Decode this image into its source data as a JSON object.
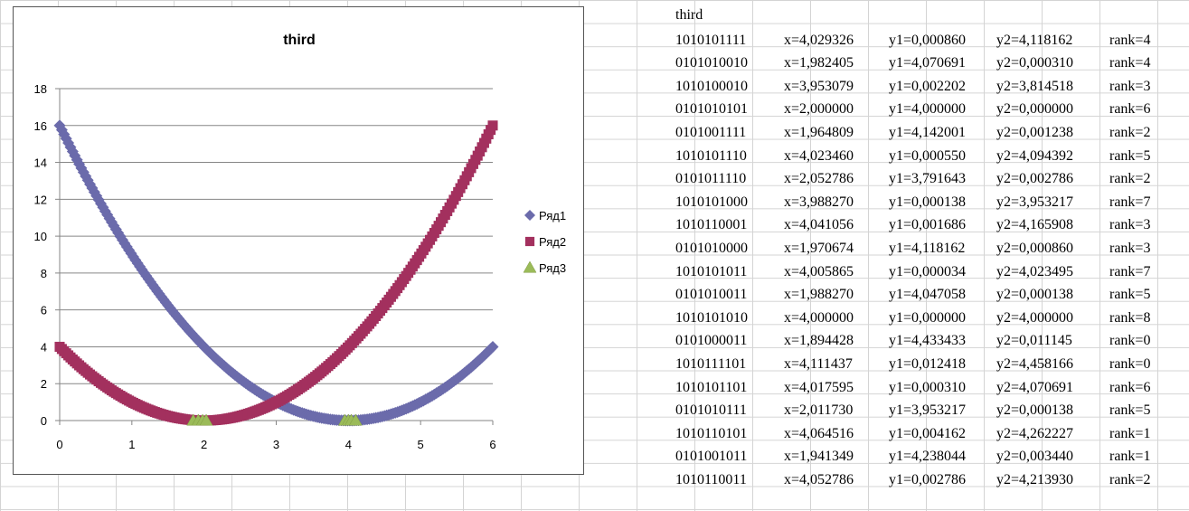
{
  "chart_data": {
    "type": "scatter",
    "title": "third",
    "xlabel": "",
    "ylabel": "",
    "xlim": [
      0,
      6
    ],
    "ylim": [
      0,
      18
    ],
    "x_ticks": [
      "0",
      "1",
      "2",
      "3",
      "4",
      "5",
      "6"
    ],
    "y_ticks": [
      "0",
      "2",
      "4",
      "6",
      "8",
      "10",
      "12",
      "14",
      "16",
      "18"
    ],
    "grid": "horizontal",
    "legend_position": "right",
    "series": [
      {
        "name": "Ряд1",
        "marker": "diamond",
        "color": "#6b6bab",
        "formula": "(x-4)^2",
        "x_range": [
          0,
          6
        ]
      },
      {
        "name": "Ряд2",
        "marker": "square",
        "color": "#a3305e",
        "formula": "(x-2)^2",
        "x_range": [
          0,
          6
        ]
      },
      {
        "name": "Ряд3",
        "marker": "triangle",
        "color": "#9bbb59",
        "points": [
          [
            1.85,
            0
          ],
          [
            1.92,
            0
          ],
          [
            1.98,
            0
          ],
          [
            2.03,
            0
          ],
          [
            3.95,
            0
          ],
          [
            4.0,
            0
          ],
          [
            4.04,
            0
          ],
          [
            4.1,
            0
          ]
        ]
      }
    ]
  },
  "sheet": {
    "title": "third",
    "rows": [
      {
        "code": "1010101111",
        "x": "x=4,029326",
        "y1": "y1=0,000860",
        "y2": "y2=4,118162",
        "rank": "rank=4"
      },
      {
        "code": "0101010010",
        "x": "x=1,982405",
        "y1": "y1=4,070691",
        "y2": "y2=0,000310",
        "rank": "rank=4"
      },
      {
        "code": "1010100010",
        "x": "x=3,953079",
        "y1": "y1=0,002202",
        "y2": "y2=3,814518",
        "rank": "rank=3"
      },
      {
        "code": "0101010101",
        "x": "x=2,000000",
        "y1": "y1=4,000000",
        "y2": "y2=0,000000",
        "rank": "rank=6"
      },
      {
        "code": "0101001111",
        "x": "x=1,964809",
        "y1": "y1=4,142001",
        "y2": "y2=0,001238",
        "rank": "rank=2"
      },
      {
        "code": "1010101110",
        "x": "x=4,023460",
        "y1": "y1=0,000550",
        "y2": "y2=4,094392",
        "rank": "rank=5"
      },
      {
        "code": "0101011110",
        "x": "x=2,052786",
        "y1": "y1=3,791643",
        "y2": "y2=0,002786",
        "rank": "rank=2"
      },
      {
        "code": "1010101000",
        "x": "x=3,988270",
        "y1": "y1=0,000138",
        "y2": "y2=3,953217",
        "rank": "rank=7"
      },
      {
        "code": "1010110001",
        "x": "x=4,041056",
        "y1": "y1=0,001686",
        "y2": "y2=4,165908",
        "rank": "rank=3"
      },
      {
        "code": "0101010000",
        "x": "x=1,970674",
        "y1": "y1=4,118162",
        "y2": "y2=0,000860",
        "rank": "rank=3"
      },
      {
        "code": "1010101011",
        "x": "x=4,005865",
        "y1": "y1=0,000034",
        "y2": "y2=4,023495",
        "rank": "rank=7"
      },
      {
        "code": "0101010011",
        "x": "x=1,988270",
        "y1": "y1=4,047058",
        "y2": "y2=0,000138",
        "rank": "rank=5"
      },
      {
        "code": "1010101010",
        "x": "x=4,000000",
        "y1": "y1=0,000000",
        "y2": "y2=4,000000",
        "rank": "rank=8"
      },
      {
        "code": "0101000011",
        "x": "x=1,894428",
        "y1": "y1=4,433433",
        "y2": "y2=0,011145",
        "rank": "rank=0"
      },
      {
        "code": "1010111101",
        "x": "x=4,111437",
        "y1": "y1=0,012418",
        "y2": "y2=4,458166",
        "rank": "rank=0"
      },
      {
        "code": "1010101101",
        "x": "x=4,017595",
        "y1": "y1=0,000310",
        "y2": "y2=4,070691",
        "rank": "rank=6"
      },
      {
        "code": "0101010111",
        "x": "x=2,011730",
        "y1": "y1=3,953217",
        "y2": "y2=0,000138",
        "rank": "rank=5"
      },
      {
        "code": "1010110101",
        "x": "x=4,064516",
        "y1": "y1=0,004162",
        "y2": "y2=4,262227",
        "rank": "rank=1"
      },
      {
        "code": "0101001011",
        "x": "x=1,941349",
        "y1": "y1=4,238044",
        "y2": "y2=0,003440",
        "rank": "rank=1"
      },
      {
        "code": "1010110011",
        "x": "x=4,052786",
        "y1": "y1=0,002786",
        "y2": "y2=4,213930",
        "rank": "rank=2"
      }
    ]
  }
}
